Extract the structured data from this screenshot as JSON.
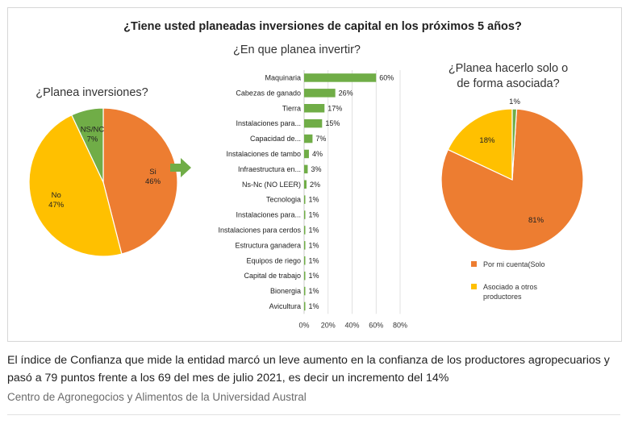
{
  "figure": {
    "title": "¿Tiene usted planeadas inversiones de capital en los próximos 5 años?"
  },
  "chart_data": [
    {
      "type": "pie",
      "title": "¿Planea inversiones?",
      "slices": [
        {
          "label": "Si",
          "value": 46,
          "value_label": "46%",
          "color": "#ED7D31"
        },
        {
          "label": "No",
          "value": 47,
          "value_label": "47%",
          "color": "#FFC000"
        },
        {
          "label": "NS/NC",
          "value": 7,
          "value_label": "7%",
          "color": "#70AD47"
        }
      ]
    },
    {
      "type": "bar",
      "orientation": "horizontal",
      "title": "¿En que planea invertir?",
      "categories": [
        "Maquinaria",
        "Cabezas de ganado",
        "Tierra",
        "Instalaciones para...",
        "Capacidad de...",
        "Instalaciones de tambo",
        "Infraestructura en...",
        "Ns-Nc (NO LEER)",
        "Tecnologia",
        "Instalaciones para...",
        "Instalaciones para cerdos",
        "Estructura ganadera",
        "Equipos de riego",
        "Capital de trabajo",
        "Bionergia",
        "Avicultura"
      ],
      "values": [
        60,
        26,
        17,
        15,
        7,
        4,
        3,
        2,
        1,
        1,
        1,
        1,
        1,
        1,
        1,
        1
      ],
      "value_labels": [
        "60%",
        "26%",
        "17%",
        "15%",
        "7%",
        "4%",
        "3%",
        "2%",
        "1%",
        "1%",
        "1%",
        "1%",
        "1%",
        "1%",
        "1%",
        "1%"
      ],
      "xlim": [
        0,
        80
      ],
      "xticks": [
        "0%",
        "20%",
        "40%",
        "60%",
        "80%"
      ],
      "color": "#70AD47"
    },
    {
      "type": "pie",
      "title_lines": [
        "¿Planea hacerlo solo o",
        "de forma asociada?"
      ],
      "slices": [
        {
          "label": "Por mi cuenta(Solo",
          "value": 81,
          "value_label": "81%",
          "color": "#ED7D31"
        },
        {
          "label": "Asociado a otros productores",
          "value": 18,
          "value_label": "18%",
          "color": "#FFC000"
        },
        {
          "label": "",
          "value": 1,
          "value_label": "1%",
          "color": "#70AD47"
        }
      ],
      "legend": [
        {
          "lines": [
            "Por mi cuenta(Solo"
          ],
          "color": "#ED7D31"
        },
        {
          "lines": [
            "Asociado a otros",
            "productores"
          ],
          "color": "#FFC000"
        }
      ],
      "legend_position": "bottom"
    }
  ],
  "caption": "El índice de Confianza que mide la entidad marcó un leve aumento en la confianza de los productores agropecuarios y pasó a 79 puntos frente a los 69 del mes de julio 2021, es decir un incremento del 14%",
  "source": "Centro de Agronegocios y Alimentos de la Universidad Austral",
  "colors": {
    "arrow": "#70AD47",
    "grid": "#d9d9d9"
  }
}
